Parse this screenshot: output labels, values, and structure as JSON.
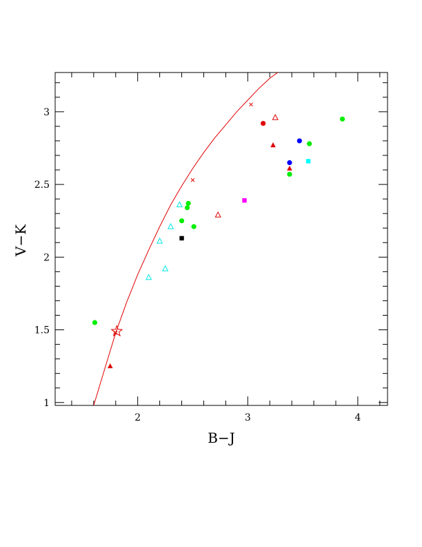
{
  "chart_data": {
    "type": "scatter",
    "xlabel": "B−J",
    "ylabel": "V−K",
    "xlim": [
      1.25,
      4.27
    ],
    "ylim": [
      0.98,
      3.27
    ],
    "x_ticks": [
      {
        "value": 2,
        "label": "2"
      },
      {
        "value": 3,
        "label": "3"
      },
      {
        "value": 4,
        "label": "4"
      }
    ],
    "y_ticks": [
      {
        "value": 1,
        "label": "1"
      },
      {
        "value": 1.5,
        "label": "1.5"
      },
      {
        "value": 2,
        "label": "2"
      },
      {
        "value": 2.5,
        "label": "2.5"
      },
      {
        "value": 3,
        "label": "3"
      }
    ],
    "x_minor_step": 0.2,
    "y_minor_step": 0.1,
    "grid": false,
    "curve": {
      "color": "#e00000",
      "points": [
        [
          1.6,
          0.98
        ],
        [
          1.7,
          1.23
        ],
        [
          1.8,
          1.48
        ],
        [
          1.9,
          1.69
        ],
        [
          2.0,
          1.88
        ],
        [
          2.1,
          2.05
        ],
        [
          2.2,
          2.21
        ],
        [
          2.3,
          2.36
        ],
        [
          2.4,
          2.49
        ],
        [
          2.5,
          2.61
        ],
        [
          2.6,
          2.72
        ],
        [
          2.7,
          2.82
        ],
        [
          2.8,
          2.91
        ],
        [
          2.9,
          3.0
        ],
        [
          3.0,
          3.08
        ],
        [
          3.1,
          3.16
        ],
        [
          3.2,
          3.23
        ],
        [
          3.29,
          3.28
        ]
      ],
      "markers": [
        {
          "x": 1.8,
          "y": 1.48
        },
        {
          "x": 2.5,
          "y": 2.53
        },
        {
          "x": 3.03,
          "y": 3.05
        }
      ]
    },
    "star_marker": {
      "x": 1.81,
      "y": 1.49,
      "color": "#e00000"
    },
    "points": [
      {
        "x": 1.61,
        "y": 1.55,
        "marker": "filled-circle",
        "color": "#00ee00"
      },
      {
        "x": 2.4,
        "y": 2.25,
        "marker": "filled-circle",
        "color": "#00ee00"
      },
      {
        "x": 2.46,
        "y": 2.37,
        "marker": "filled-circle",
        "color": "#00ee00"
      },
      {
        "x": 2.45,
        "y": 2.34,
        "marker": "filled-circle",
        "color": "#00ee00"
      },
      {
        "x": 2.51,
        "y": 2.21,
        "marker": "filled-circle",
        "color": "#00ee00"
      },
      {
        "x": 3.38,
        "y": 2.57,
        "marker": "filled-circle",
        "color": "#00ee00"
      },
      {
        "x": 3.56,
        "y": 2.78,
        "marker": "filled-circle",
        "color": "#00ee00"
      },
      {
        "x": 3.86,
        "y": 2.95,
        "marker": "filled-circle",
        "color": "#00ee00"
      },
      {
        "x": 3.14,
        "y": 2.92,
        "marker": "filled-circle",
        "color": "#e00000"
      },
      {
        "x": 3.38,
        "y": 2.65,
        "marker": "filled-circle",
        "color": "#0000ff"
      },
      {
        "x": 3.47,
        "y": 2.8,
        "marker": "filled-circle",
        "color": "#0000ff"
      },
      {
        "x": 3.55,
        "y": 2.66,
        "marker": "filled-square",
        "color": "#00ffff"
      },
      {
        "x": 2.97,
        "y": 2.39,
        "marker": "filled-square",
        "color": "#ff00ff"
      },
      {
        "x": 2.4,
        "y": 2.13,
        "marker": "filled-square",
        "color": "#000000"
      },
      {
        "x": 1.75,
        "y": 1.25,
        "marker": "filled-triangle",
        "color": "#e00000"
      },
      {
        "x": 3.23,
        "y": 2.77,
        "marker": "filled-triangle",
        "color": "#e00000"
      },
      {
        "x": 3.38,
        "y": 2.61,
        "marker": "filled-triangle",
        "color": "#e00000"
      },
      {
        "x": 2.73,
        "y": 2.29,
        "marker": "open-triangle",
        "color": "#e00000"
      },
      {
        "x": 3.25,
        "y": 2.96,
        "marker": "open-triangle",
        "color": "#e00000"
      },
      {
        "x": 2.1,
        "y": 1.86,
        "marker": "open-triangle",
        "color": "#00e5e5"
      },
      {
        "x": 2.2,
        "y": 2.11,
        "marker": "open-triangle",
        "color": "#00e5e5"
      },
      {
        "x": 2.25,
        "y": 1.92,
        "marker": "open-triangle",
        "color": "#00e5e5"
      },
      {
        "x": 2.3,
        "y": 2.21,
        "marker": "open-triangle",
        "color": "#00e5e5"
      },
      {
        "x": 2.38,
        "y": 2.36,
        "marker": "open-triangle",
        "color": "#00e5e5"
      }
    ]
  }
}
